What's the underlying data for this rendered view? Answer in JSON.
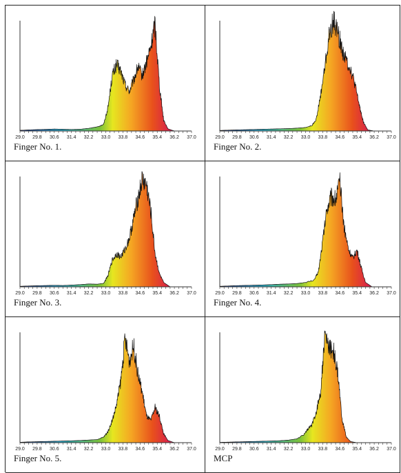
{
  "chart_data": [
    {
      "type": "area",
      "caption": "Finger No. 1.",
      "xlim": [
        29.0,
        37.0
      ],
      "x_ticks": [
        "29.0",
        "29.8",
        "30.6",
        "31.4",
        "32.2",
        "33.0",
        "33.8",
        "34.6",
        "35.4",
        "36.2",
        "37.0"
      ],
      "grid": false,
      "color_scale": [
        "#2a3f9e",
        "#2aa9c4",
        "#7dc23a",
        "#e6e620",
        "#f5a623",
        "#e8501c",
        "#d4145a"
      ],
      "x": [
        29.0,
        29.4,
        29.8,
        30.2,
        30.6,
        31.0,
        31.4,
        31.8,
        32.2,
        32.6,
        32.9,
        33.1,
        33.3,
        33.5,
        33.7,
        33.9,
        34.1,
        34.3,
        34.5,
        34.7,
        34.9,
        35.1,
        35.3,
        35.5,
        35.7,
        35.9,
        36.2
      ],
      "y": [
        0.6,
        1.0,
        1.3,
        1.5,
        1.8,
        1.6,
        1.4,
        1.6,
        2.4,
        3.8,
        6,
        21,
        50,
        60,
        54,
        42,
        36,
        46,
        58,
        50,
        62,
        76,
        98,
        42,
        10,
        2,
        0
      ]
    },
    {
      "type": "area",
      "caption": "Finger No. 2.",
      "xlim": [
        29.0,
        37.0
      ],
      "x_ticks": [
        "29.0",
        "29.8",
        "30.6",
        "31.4",
        "32.2",
        "33.0",
        "33.8",
        "34.6",
        "35.4",
        "36.2",
        "37.0"
      ],
      "grid": false,
      "color_scale": [
        "#2a3f9e",
        "#2aa9c4",
        "#7dc23a",
        "#e6e620",
        "#f5a623",
        "#e8501c",
        "#d4145a"
      ],
      "x": [
        29.0,
        29.4,
        29.8,
        30.2,
        30.6,
        31.0,
        31.4,
        31.8,
        32.2,
        32.6,
        33.0,
        33.3,
        33.5,
        33.7,
        33.9,
        34.1,
        34.3,
        34.5,
        34.7,
        34.9,
        35.1,
        35.3,
        35.5,
        35.7,
        35.9,
        36.2
      ],
      "y": [
        0.5,
        0.8,
        1.0,
        1.2,
        1.4,
        1.6,
        1.8,
        2.0,
        2.2,
        2.6,
        3.2,
        5,
        11,
        32,
        58,
        86,
        100,
        90,
        74,
        64,
        56,
        42,
        24,
        8,
        1,
        0
      ]
    },
    {
      "type": "area",
      "caption": "Finger No. 3.",
      "xlim": [
        29.0,
        37.0
      ],
      "x_ticks": [
        "29.0",
        "29.8",
        "30.6",
        "31.4",
        "32.2",
        "33.0",
        "33.8",
        "34.6",
        "35.4",
        "36.2",
        "37.0"
      ],
      "grid": false,
      "color_scale": [
        "#2a3f9e",
        "#2aa9c4",
        "#7dc23a",
        "#e6e620",
        "#f5a623",
        "#e8501c",
        "#d4145a"
      ],
      "x": [
        29.0,
        29.4,
        29.8,
        30.2,
        30.6,
        31.0,
        31.4,
        31.8,
        32.2,
        32.6,
        32.9,
        33.1,
        33.3,
        33.5,
        33.7,
        33.9,
        34.1,
        34.3,
        34.5,
        34.7,
        34.9,
        35.1,
        35.3,
        35.5,
        35.7,
        36.0
      ],
      "y": [
        0.5,
        0.8,
        1.0,
        1.2,
        1.4,
        1.2,
        1.6,
        2.0,
        2.6,
        2.4,
        3.2,
        10,
        24,
        30,
        27,
        34,
        44,
        62,
        80,
        97,
        92,
        68,
        30,
        12,
        4,
        0
      ]
    },
    {
      "type": "area",
      "caption": "Finger No. 4.",
      "xlim": [
        29.0,
        37.0
      ],
      "x_ticks": [
        "29.0",
        "29.8",
        "30.6",
        "31.4",
        "32.2",
        "33.0",
        "33.8",
        "34.6",
        "35.4",
        "36.2",
        "37.0"
      ],
      "grid": false,
      "color_scale": [
        "#2a3f9e",
        "#2aa9c4",
        "#7dc23a",
        "#e6e620",
        "#f5a623",
        "#e8501c",
        "#d4145a"
      ],
      "x": [
        29.0,
        29.4,
        29.8,
        30.2,
        30.6,
        31.0,
        31.4,
        31.8,
        32.2,
        32.6,
        33.0,
        33.4,
        33.6,
        33.8,
        34.0,
        34.2,
        34.4,
        34.6,
        34.8,
        35.0,
        35.2,
        35.4,
        35.6,
        35.8,
        36.1
      ],
      "y": [
        0.5,
        0.8,
        1.1,
        1.3,
        1.5,
        1.7,
        2.0,
        2.4,
        2.6,
        3.0,
        4.0,
        6,
        14,
        42,
        72,
        82,
        80,
        94,
        54,
        34,
        26,
        33,
        17,
        4,
        0
      ]
    },
    {
      "type": "area",
      "caption": "Finger No. 5.",
      "xlim": [
        29.0,
        37.0
      ],
      "x_ticks": [
        "29.0",
        "29.8",
        "30.6",
        "31.4",
        "32.2",
        "33.0",
        "33.8",
        "34.6",
        "35.4",
        "36.2",
        "37.0"
      ],
      "grid": false,
      "color_scale": [
        "#2a3f9e",
        "#2aa9c4",
        "#7dc23a",
        "#e6e620",
        "#f5a623",
        "#e8501c",
        "#d4145a"
      ],
      "x": [
        29.0,
        29.4,
        29.8,
        30.2,
        30.6,
        31.0,
        31.4,
        31.8,
        32.2,
        32.6,
        32.9,
        33.1,
        33.3,
        33.5,
        33.7,
        33.9,
        34.1,
        34.3,
        34.5,
        34.7,
        34.9,
        35.1,
        35.3,
        35.5,
        35.7,
        35.9,
        36.2
      ],
      "y": [
        0.4,
        0.7,
        0.9,
        1.1,
        1.3,
        1.5,
        1.7,
        2.0,
        2.4,
        2.8,
        5,
        10,
        20,
        34,
        56,
        94,
        74,
        88,
        62,
        46,
        24,
        20,
        32,
        24,
        8,
        2,
        0
      ]
    },
    {
      "type": "area",
      "caption": "MCP",
      "xlim": [
        29.0,
        37.0
      ],
      "x_ticks": [
        "29.0",
        "29.8",
        "30.6",
        "31.4",
        "32.2",
        "33.0",
        "33.8",
        "34.6",
        "35.4",
        "36.2",
        "37.0"
      ],
      "grid": false,
      "color_scale": [
        "#2a3f9e",
        "#2aa9c4",
        "#7dc23a",
        "#e6e620",
        "#f5a623",
        "#e8501c",
        "#d4145a"
      ],
      "x": [
        29.0,
        29.4,
        29.8,
        30.2,
        30.6,
        31.0,
        31.4,
        31.8,
        32.2,
        32.6,
        32.9,
        33.1,
        33.3,
        33.5,
        33.7,
        33.9,
        34.1,
        34.3,
        34.5,
        34.7,
        34.9,
        35.1,
        35.4
      ],
      "y": [
        0.3,
        0.5,
        0.7,
        0.9,
        1.1,
        1.3,
        1.5,
        1.8,
        2.3,
        3.5,
        7,
        12,
        16,
        28,
        46,
        97,
        86,
        84,
        62,
        22,
        5,
        1,
        0
      ]
    }
  ]
}
